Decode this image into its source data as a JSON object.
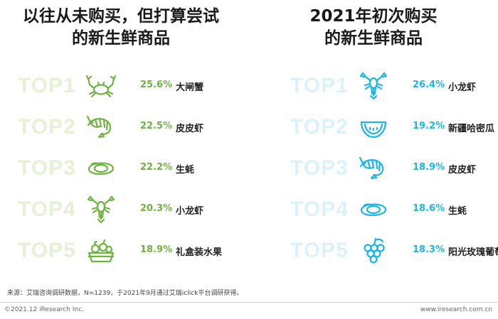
{
  "colors": {
    "left_accent": "#6db33f",
    "right_accent": "#19b6e6",
    "left_rank": "#e6f1d6",
    "right_rank": "#dcf2fb"
  },
  "left_panel": {
    "title_line1": "以往从未购买，但打算尝试",
    "title_line2": "的新生鲜商品"
  },
  "right_panel": {
    "title_line1": "2021年初次购买",
    "title_line2": "的新生鲜商品"
  },
  "chart_data": [
    {
      "type": "table",
      "title": "以往从未购买，但打算尝试的新生鲜商品",
      "unit": "%",
      "rows": [
        {
          "rank": "TOP1",
          "item": "大闸蟹",
          "value": 25.6,
          "label": "25.6%",
          "icon": "crab-icon"
        },
        {
          "rank": "TOP2",
          "item": "皮皮虾",
          "value": 22.5,
          "label": "22.5%",
          "icon": "shrimp-icon"
        },
        {
          "rank": "TOP3",
          "item": "生蚝",
          "value": 22.2,
          "label": "22.2%",
          "icon": "oyster-icon"
        },
        {
          "rank": "TOP4",
          "item": "小龙虾",
          "value": 20.3,
          "label": "20.3%",
          "icon": "crayfish-icon"
        },
        {
          "rank": "TOP5",
          "item": "礼盒装水果",
          "value": 18.9,
          "label": "18.9%",
          "icon": "fruit-box-icon"
        }
      ]
    },
    {
      "type": "table",
      "title": "2021年初次购买的新生鲜商品",
      "unit": "%",
      "rows": [
        {
          "rank": "TOP1",
          "item": "小龙虾",
          "value": 26.4,
          "label": "26.4%",
          "icon": "crayfish-icon"
        },
        {
          "rank": "TOP2",
          "item": "新疆哈密瓜",
          "value": 19.2,
          "label": "19.2%",
          "icon": "melon-icon"
        },
        {
          "rank": "TOP3",
          "item": "皮皮虾",
          "value": 18.9,
          "label": "18.9%",
          "icon": "shrimp-icon"
        },
        {
          "rank": "TOP4",
          "item": "生蚝",
          "value": 18.6,
          "label": "18.6%",
          "icon": "oyster-icon"
        },
        {
          "rank": "TOP5",
          "item": "阳光玫瑰葡萄",
          "value": 18.3,
          "label": "18.3%",
          "icon": "grape-icon"
        }
      ]
    }
  ],
  "footer": {
    "source": "来源：艾瑞咨询调研数据，N=1239，于2021年9月通过艾瑞iclick平台调研获得。",
    "copyright": "©2021.12 iResearch Inc.",
    "website": "www.iresearch.com.cn"
  }
}
